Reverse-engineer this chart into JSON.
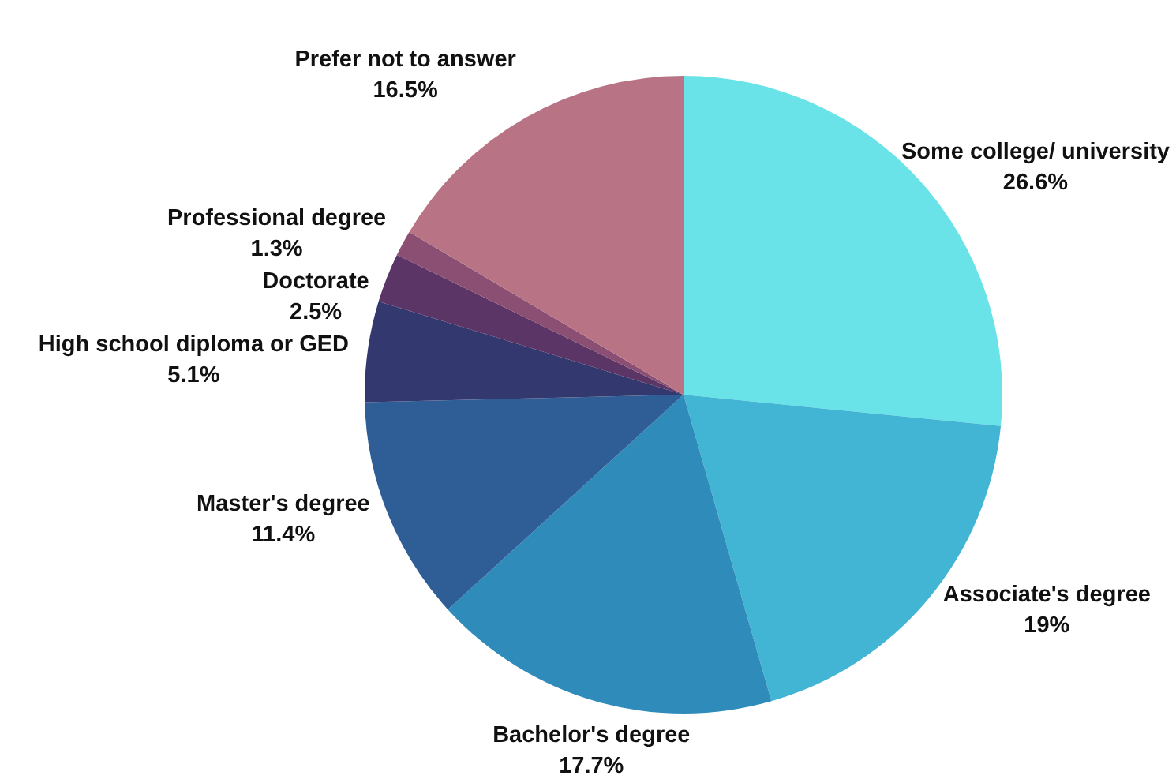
{
  "chart_data": {
    "type": "pie",
    "categories": [
      "Some college/ university",
      "Associate's degree",
      "Bachelor's degree",
      "Master's degree",
      "High school diploma or GED",
      "Doctorate",
      "Professional degree",
      "Prefer not to answer"
    ],
    "values": [
      26.6,
      19,
      17.7,
      11.4,
      5.1,
      2.5,
      1.3,
      16.5
    ],
    "value_labels": [
      "26.6%",
      "19%",
      "17.7%",
      "11.4%",
      "5.1%",
      "2.5%",
      "1.3%",
      "16.5%"
    ],
    "colors": [
      "#69e3e8",
      "#42b5d5",
      "#2e8bba",
      "#2f5e97",
      "#33386e",
      "#5a3566",
      "#8a4f72",
      "#b87484"
    ]
  }
}
